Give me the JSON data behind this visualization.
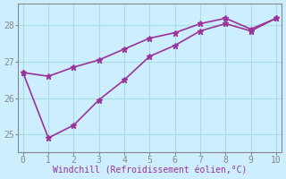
{
  "xlabel": "Windchill (Refroidissement éolien,°C)",
  "x": [
    0,
    1,
    2,
    3,
    4,
    5,
    6,
    7,
    8,
    9,
    10
  ],
  "line1_y": [
    26.7,
    26.6,
    26.85,
    27.05,
    27.35,
    27.65,
    27.8,
    28.05,
    28.2,
    27.9,
    28.2
  ],
  "line2_y": [
    26.7,
    24.9,
    25.25,
    25.95,
    26.5,
    27.15,
    27.45,
    27.85,
    28.05,
    27.85,
    28.2
  ],
  "line_color": "#993399",
  "bg_color": "#cceeff",
  "grid_color": "#aadddd",
  "axis_color": "#888888",
  "text_color": "#993399",
  "xlim": [
    -0.2,
    10.2
  ],
  "ylim": [
    24.5,
    28.6
  ],
  "yticks": [
    25,
    26,
    27,
    28
  ],
  "xticks": [
    0,
    1,
    2,
    3,
    4,
    5,
    6,
    7,
    8,
    9,
    10
  ],
  "marker": "*",
  "markersize": 5,
  "linewidth": 1.2,
  "tick_fontsize": 7,
  "xlabel_fontsize": 7
}
